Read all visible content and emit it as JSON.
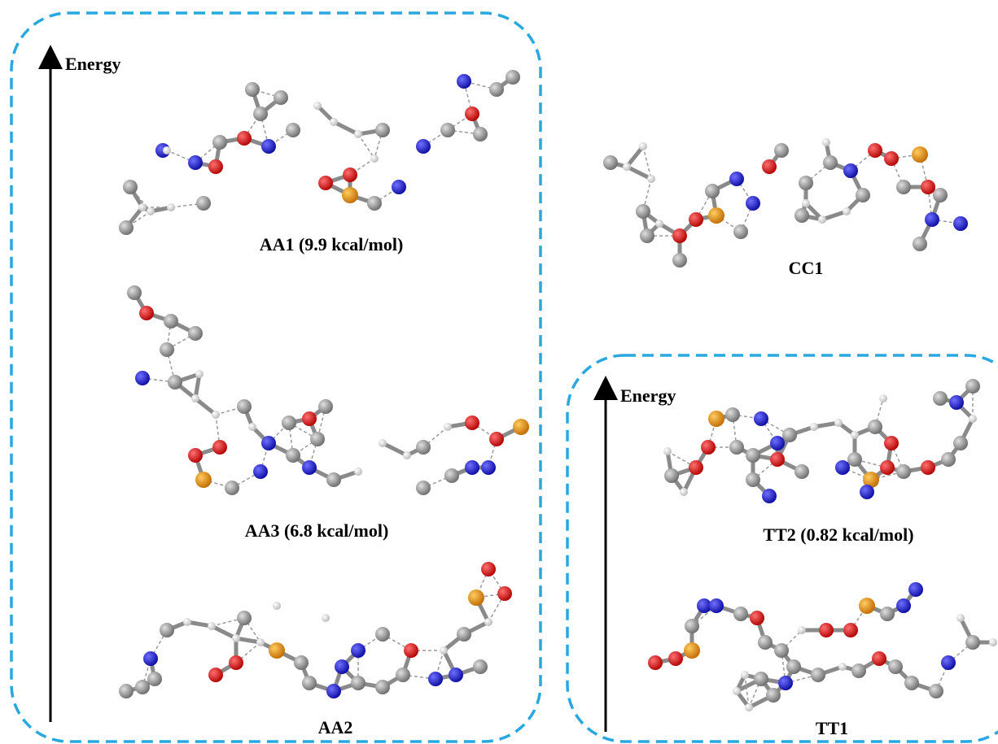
{
  "colors": {
    "frame": "#29a8e0",
    "axis": "#000000",
    "carbon": "#808080",
    "nitrogen": "#1717c8",
    "oxygen": "#d40000",
    "phosphorus": "#e38a10",
    "hydrogen": "#e8e8e8"
  },
  "left_panel": {
    "axis_label": "Energy",
    "structures": [
      {
        "id": "aa1",
        "label": "AA1 (9.9 kcal/mol)"
      },
      {
        "id": "aa3",
        "label": "AA3 (6.8 kcal/mol)"
      },
      {
        "id": "aa2",
        "label": "AA2"
      }
    ]
  },
  "top_right": {
    "structure": {
      "id": "cc1",
      "label": "CC1"
    }
  },
  "right_panel": {
    "axis_label": "Energy",
    "structures": [
      {
        "id": "tt2",
        "label": "TT2 (0.82 kcal/mol)"
      },
      {
        "id": "tt1",
        "label": "TT1"
      }
    ]
  }
}
